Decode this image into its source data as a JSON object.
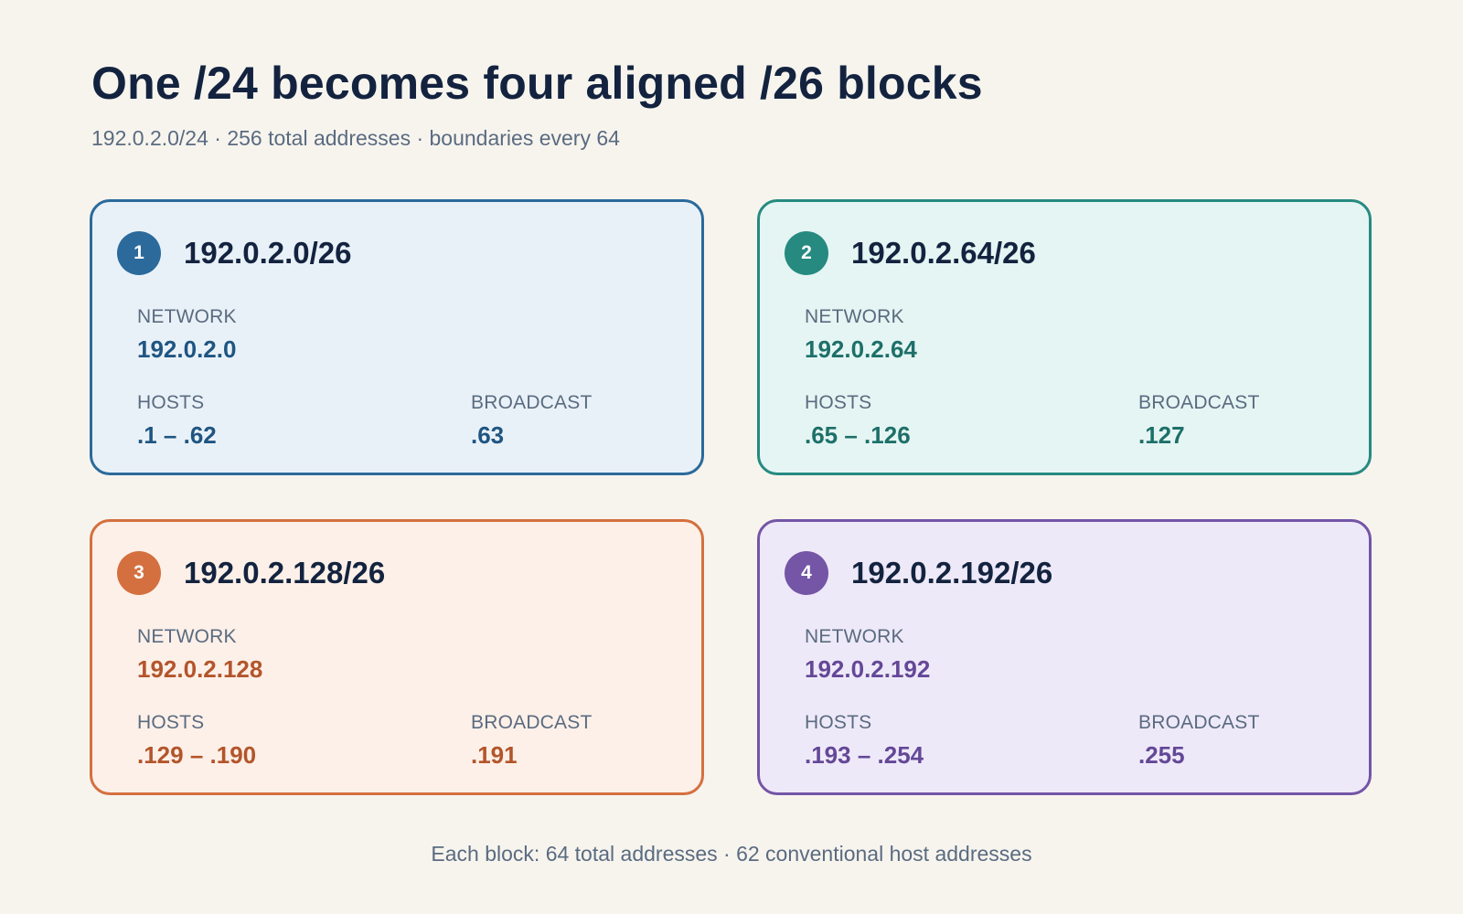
{
  "header": {
    "title": "One /24 becomes four aligned /26 blocks",
    "subtitle": "192.0.2.0/24 · 256 total addresses · boundaries every 64"
  },
  "labels": {
    "network": "NETWORK",
    "hosts": "HOSTS",
    "broadcast": "BROADCAST"
  },
  "blocks": [
    {
      "number": "1",
      "cidr": "192.0.2.0/26",
      "network": "192.0.2.0",
      "hosts": ".1 – .62",
      "broadcast": ".63",
      "colors": {
        "accent": "#2b6a9b",
        "fill": "#e9f1f8",
        "value": "#1e5582"
      }
    },
    {
      "number": "2",
      "cidr": "192.0.2.64/26",
      "network": "192.0.2.64",
      "hosts": ".65 – .126",
      "broadcast": ".127",
      "colors": {
        "accent": "#268a80",
        "fill": "#e5f5f3",
        "value": "#1d7069"
      }
    },
    {
      "number": "3",
      "cidr": "192.0.2.128/26",
      "network": "192.0.2.128",
      "hosts": ".129 – .190",
      "broadcast": ".191",
      "colors": {
        "accent": "#d4703f",
        "fill": "#fdf0e8",
        "value": "#b3552b"
      }
    },
    {
      "number": "4",
      "cidr": "192.0.2.192/26",
      "network": "192.0.2.192",
      "hosts": ".193 – .254",
      "broadcast": ".255",
      "colors": {
        "accent": "#7455a6",
        "fill": "#eee9f8",
        "value": "#644897"
      }
    }
  ],
  "footer": {
    "note": "Each block: 64 total addresses · 62 conventional host addresses"
  }
}
